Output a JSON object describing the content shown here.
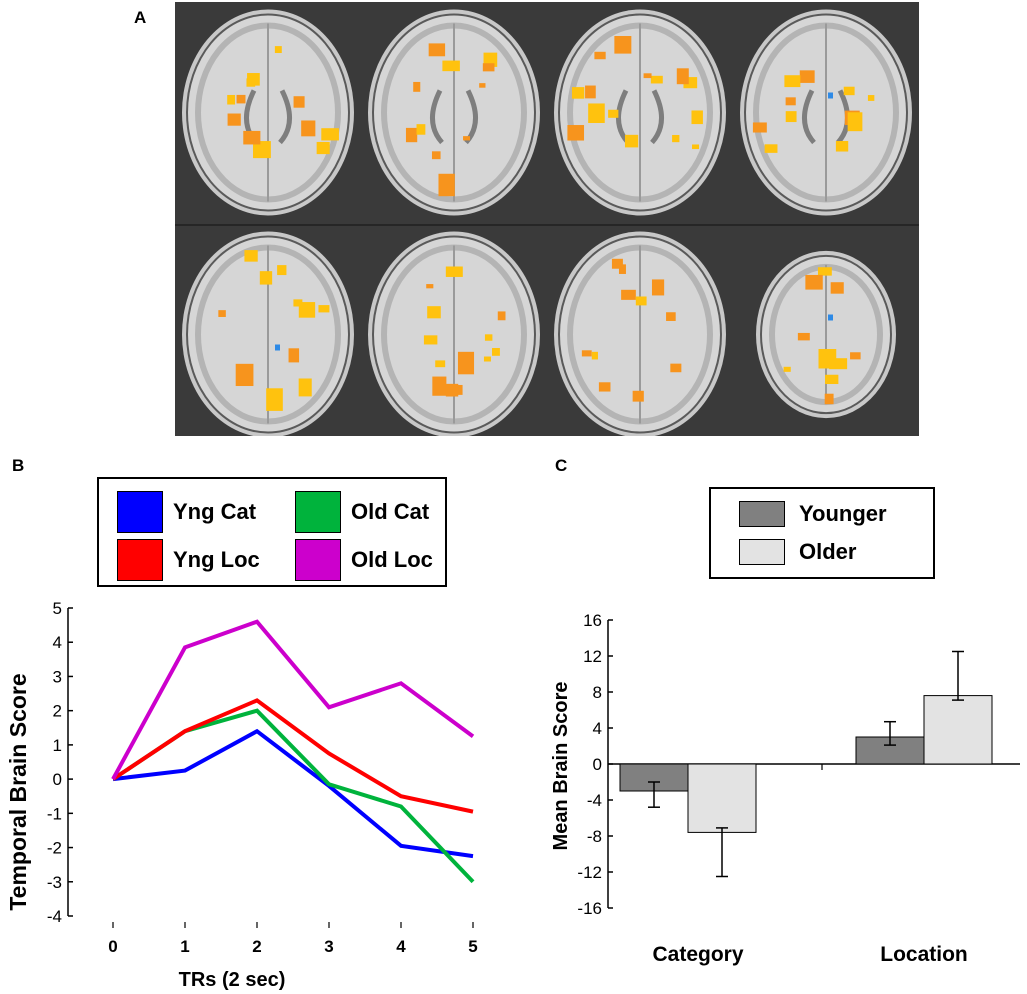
{
  "panels": {
    "a": "A",
    "b": "B",
    "c": "C"
  },
  "brain_images": {
    "description_name": "axial-brain-slices",
    "rows": 2,
    "columns": 4,
    "activation_colors": {
      "positive": "#f7941d",
      "positive_bright": "#ffc20e",
      "negative": "#2e8ae6"
    }
  },
  "line_legend": [
    {
      "label": "Yng Cat",
      "color": "#0000ff"
    },
    {
      "label": "Old Cat",
      "color": "#00b33c"
    },
    {
      "label": "Yng Loc",
      "color": "#ff0000"
    },
    {
      "label": "Old Loc",
      "color": "#cc00cc"
    }
  ],
  "bar_legend": [
    {
      "label": "Younger",
      "color": "#808080"
    },
    {
      "label": "Older",
      "color": "#e3e3e3"
    }
  ],
  "chart_data": [
    {
      "type": "line",
      "title": "",
      "xlabel": "TRs (2 sec)",
      "ylabel": "Temporal Brain Score",
      "x": [
        0,
        1,
        2,
        3,
        4,
        5
      ],
      "xlim": [
        0,
        5
      ],
      "ylim": [
        -4,
        5
      ],
      "yticks": [
        "5",
        "4",
        "3",
        "2",
        "1",
        "0",
        "-1",
        "-2",
        "-3",
        "-4"
      ],
      "xticks": [
        "0",
        "1",
        "2",
        "3",
        "4",
        "5"
      ],
      "series": [
        {
          "name": "Yng Cat",
          "color": "#0000ff",
          "values": [
            0,
            0.25,
            1.4,
            -0.2,
            -1.95,
            -2.25
          ]
        },
        {
          "name": "Old Cat",
          "color": "#00b33c",
          "values": [
            0,
            1.4,
            2.0,
            -0.15,
            -0.8,
            -3.0
          ]
        },
        {
          "name": "Yng Loc",
          "color": "#ff0000",
          "values": [
            0,
            1.4,
            2.3,
            0.75,
            -0.5,
            -0.95
          ]
        },
        {
          "name": "Old Loc",
          "color": "#cc00cc",
          "values": [
            0,
            3.85,
            4.6,
            2.1,
            2.8,
            1.25
          ]
        }
      ]
    },
    {
      "type": "bar",
      "title": "",
      "xlabel": "",
      "ylabel": "Mean Brain Score",
      "categories": [
        "Category",
        "Location"
      ],
      "ylim": [
        -16,
        16
      ],
      "yticks": [
        "16",
        "12",
        "8",
        "4",
        "0",
        "-4",
        "-8",
        "-12",
        "-16"
      ],
      "series": [
        {
          "name": "Younger",
          "color": "#808080",
          "values": [
            -3,
            3
          ],
          "error_low": [
            -4.8,
            2.1
          ],
          "error_high": [
            -2.0,
            4.7
          ]
        },
        {
          "name": "Older",
          "color": "#e3e3e3",
          "values": [
            -7.6,
            7.6
          ],
          "error_low": [
            -12.5,
            7.1
          ],
          "error_high": [
            -7.1,
            12.5
          ]
        }
      ]
    }
  ]
}
